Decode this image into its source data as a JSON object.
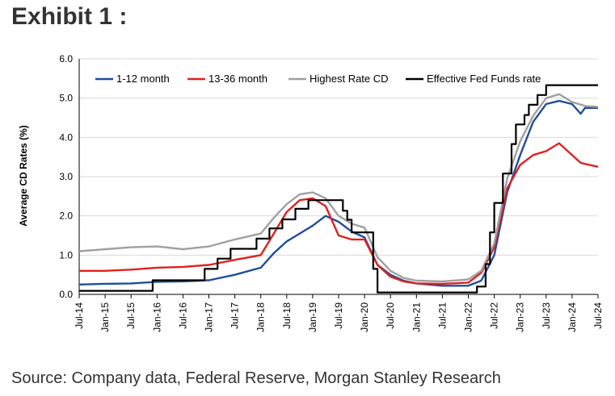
{
  "header": {
    "title": "Exhibit 1 :"
  },
  "footer": {
    "source": "Source: Company data, Federal Reserve, Morgan Stanley Research"
  },
  "chart_data": {
    "type": "line",
    "title": "",
    "xlabel": "",
    "ylabel": "Average CD Rates (%)",
    "ylim": [
      0,
      6
    ],
    "yticks": [
      "0.0",
      "1.0",
      "2.0",
      "3.0",
      "4.0",
      "5.0",
      "6.0"
    ],
    "xlim": [
      "2014-07",
      "2024-07"
    ],
    "x_tick_labels": [
      "Jul-14",
      "Jan-15",
      "Jul-15",
      "Jan-16",
      "Jul-16",
      "Jan-17",
      "Jul-17",
      "Jan-18",
      "Jul-18",
      "Jan-19",
      "Jul-19",
      "Jan-20",
      "Jul-20",
      "Jan-21",
      "Jul-21",
      "Jan-22",
      "Jul-22",
      "Jan-23",
      "Jul-23",
      "Jan-24",
      "Jul-24"
    ],
    "grid": "horizontal",
    "legend_position": "top",
    "series": [
      {
        "name": "1-12 month",
        "color": "#1f4e9c",
        "x": [
          "2014-07",
          "2015-01",
          "2015-07",
          "2016-01",
          "2016-07",
          "2017-01",
          "2017-07",
          "2018-01",
          "2018-04",
          "2018-07",
          "2018-10",
          "2019-01",
          "2019-04",
          "2019-07",
          "2019-10",
          "2020-01",
          "2020-04",
          "2020-07",
          "2020-10",
          "2021-01",
          "2021-07",
          "2022-01",
          "2022-04",
          "2022-07",
          "2022-10",
          "2023-01",
          "2023-04",
          "2023-07",
          "2023-10",
          "2024-01",
          "2024-03",
          "2024-04",
          "2024-07"
        ],
        "values": [
          0.25,
          0.27,
          0.28,
          0.32,
          0.33,
          0.36,
          0.5,
          0.68,
          1.05,
          1.35,
          1.55,
          1.75,
          2.0,
          1.85,
          1.6,
          1.45,
          0.75,
          0.5,
          0.35,
          0.28,
          0.22,
          0.22,
          0.35,
          1.0,
          2.6,
          3.55,
          4.4,
          4.85,
          4.93,
          4.85,
          4.6,
          4.75,
          4.75
        ]
      },
      {
        "name": "13-36 month",
        "color": "#e02020",
        "x": [
          "2014-07",
          "2015-01",
          "2015-07",
          "2016-01",
          "2016-07",
          "2017-01",
          "2017-07",
          "2018-01",
          "2018-04",
          "2018-07",
          "2018-10",
          "2019-01",
          "2019-04",
          "2019-07",
          "2019-10",
          "2020-01",
          "2020-04",
          "2020-07",
          "2020-10",
          "2021-01",
          "2021-07",
          "2022-01",
          "2022-04",
          "2022-07",
          "2022-10",
          "2023-01",
          "2023-04",
          "2023-07",
          "2023-10",
          "2024-01",
          "2024-03",
          "2024-07"
        ],
        "values": [
          0.6,
          0.6,
          0.63,
          0.68,
          0.7,
          0.75,
          0.88,
          1.0,
          1.55,
          2.1,
          2.4,
          2.45,
          2.25,
          1.5,
          1.4,
          1.4,
          0.75,
          0.45,
          0.33,
          0.28,
          0.27,
          0.3,
          0.55,
          1.2,
          2.7,
          3.3,
          3.55,
          3.65,
          3.85,
          3.55,
          3.35,
          3.25
        ]
      },
      {
        "name": "Highest Rate CD",
        "color": "#a0a0a0",
        "x": [
          "2014-07",
          "2015-01",
          "2015-07",
          "2016-01",
          "2016-07",
          "2017-01",
          "2017-07",
          "2018-01",
          "2018-04",
          "2018-07",
          "2018-10",
          "2019-01",
          "2019-04",
          "2019-07",
          "2019-10",
          "2020-01",
          "2020-04",
          "2020-07",
          "2020-10",
          "2021-01",
          "2021-07",
          "2022-01",
          "2022-04",
          "2022-07",
          "2022-10",
          "2023-01",
          "2023-04",
          "2023-07",
          "2023-10",
          "2024-01",
          "2024-04",
          "2024-07"
        ],
        "values": [
          1.1,
          1.15,
          1.2,
          1.22,
          1.15,
          1.22,
          1.4,
          1.55,
          1.95,
          2.3,
          2.55,
          2.6,
          2.45,
          2.0,
          1.8,
          1.7,
          0.95,
          0.6,
          0.42,
          0.35,
          0.33,
          0.38,
          0.6,
          1.3,
          2.95,
          3.9,
          4.55,
          5.0,
          5.1,
          4.9,
          4.8,
          4.78
        ]
      },
      {
        "name": "Effective Fed Funds rate",
        "color": "#000000",
        "step": true,
        "x": [
          "2014-07",
          "2015-12",
          "2016-12",
          "2017-03",
          "2017-06",
          "2017-12",
          "2018-03",
          "2018-06",
          "2018-09",
          "2018-12",
          "2019-08",
          "2019-09",
          "2019-10",
          "2020-03",
          "2020-04",
          "2022-03",
          "2022-05",
          "2022-06",
          "2022-07",
          "2022-09",
          "2022-11",
          "2022-12",
          "2023-02",
          "2023-03",
          "2023-05",
          "2023-07",
          "2024-07"
        ],
        "values": [
          0.09,
          0.36,
          0.65,
          0.91,
          1.16,
          1.42,
          1.68,
          1.91,
          2.18,
          2.4,
          2.13,
          1.9,
          1.58,
          0.65,
          0.05,
          0.2,
          0.77,
          1.58,
          2.33,
          3.08,
          3.83,
          4.33,
          4.57,
          4.83,
          5.08,
          5.33,
          5.33
        ]
      }
    ]
  }
}
